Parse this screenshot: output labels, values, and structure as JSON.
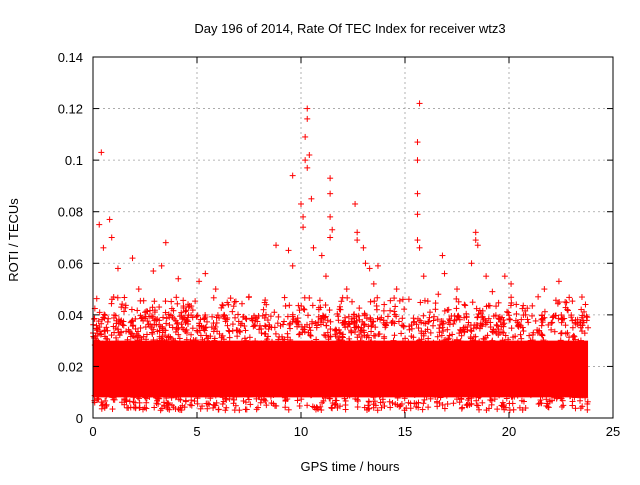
{
  "chart_data": {
    "type": "scatter",
    "title": "Day 196 of 2014, Rate Of TEC Index for receiver wtz3",
    "xlabel": "GPS time / hours",
    "ylabel": "ROTI / TECUs",
    "xlim": [
      0,
      25
    ],
    "ylim": [
      0,
      0.14
    ],
    "x_ticks": [
      "0",
      "5",
      "10",
      "15",
      "20",
      "25"
    ],
    "y_ticks": [
      "0",
      "0.02",
      "0.04",
      "0.06",
      "0.08",
      "0.1",
      "0.12",
      "0.14"
    ],
    "grid": true,
    "marker": "+",
    "color": "#ff0000",
    "data_hours": [
      0,
      23.8
    ],
    "baseline_band": [
      0.008,
      0.03
    ],
    "series": [
      {
        "name": "ROTI",
        "points": [
          [
            0.4,
            0.103
          ],
          [
            0.3,
            0.075
          ],
          [
            0.8,
            0.077
          ],
          [
            0.9,
            0.07
          ],
          [
            0.5,
            0.066
          ],
          [
            1.2,
            0.058
          ],
          [
            1.9,
            0.062
          ],
          [
            2.2,
            0.05
          ],
          [
            2.9,
            0.057
          ],
          [
            3.5,
            0.068
          ],
          [
            3.3,
            0.059
          ],
          [
            4.1,
            0.054
          ],
          [
            5.1,
            0.053
          ],
          [
            5.4,
            0.056
          ],
          [
            5.9,
            0.05
          ],
          [
            6.8,
            0.045
          ],
          [
            7.5,
            0.047
          ],
          [
            8.8,
            0.067
          ],
          [
            9.4,
            0.065
          ],
          [
            9.6,
            0.059
          ],
          [
            9.6,
            0.094
          ],
          [
            10.0,
            0.083
          ],
          [
            10.1,
            0.078
          ],
          [
            10.1,
            0.074
          ],
          [
            10.2,
            0.1
          ],
          [
            10.2,
            0.109
          ],
          [
            10.3,
            0.116
          ],
          [
            10.3,
            0.12
          ],
          [
            10.4,
            0.102
          ],
          [
            10.3,
            0.097
          ],
          [
            10.5,
            0.085
          ],
          [
            10.6,
            0.066
          ],
          [
            11.0,
            0.063
          ],
          [
            11.4,
            0.093
          ],
          [
            11.4,
            0.087
          ],
          [
            11.4,
            0.078
          ],
          [
            11.5,
            0.073
          ],
          [
            11.4,
            0.07
          ],
          [
            11.2,
            0.055
          ],
          [
            12.2,
            0.05
          ],
          [
            12.6,
            0.083
          ],
          [
            12.7,
            0.072
          ],
          [
            12.7,
            0.069
          ],
          [
            13.0,
            0.066
          ],
          [
            13.1,
            0.06
          ],
          [
            13.3,
            0.058
          ],
          [
            13.5,
            0.052
          ],
          [
            13.7,
            0.059
          ],
          [
            14.0,
            0.044
          ],
          [
            14.6,
            0.05
          ],
          [
            15.7,
            0.122
          ],
          [
            15.6,
            0.107
          ],
          [
            15.6,
            0.1
          ],
          [
            15.6,
            0.087
          ],
          [
            15.6,
            0.079
          ],
          [
            15.6,
            0.069
          ],
          [
            15.7,
            0.066
          ],
          [
            15.9,
            0.055
          ],
          [
            16.6,
            0.048
          ],
          [
            16.8,
            0.063
          ],
          [
            16.9,
            0.056
          ],
          [
            17.5,
            0.05
          ],
          [
            18.4,
            0.072
          ],
          [
            18.4,
            0.069
          ],
          [
            18.5,
            0.067
          ],
          [
            18.2,
            0.06
          ],
          [
            18.9,
            0.055
          ],
          [
            19.2,
            0.049
          ],
          [
            19.8,
            0.055
          ],
          [
            20.1,
            0.052
          ],
          [
            21.4,
            0.047
          ],
          [
            21.7,
            0.05
          ],
          [
            22.4,
            0.053
          ],
          [
            22.7,
            0.045
          ],
          [
            23.2,
            0.038
          ],
          [
            23.6,
            0.037
          ],
          [
            23.8,
            0.035
          ],
          [
            0.2,
            0.03
          ],
          [
            2.5,
            0.041
          ],
          [
            4.6,
            0.043
          ],
          [
            6.3,
            0.04
          ],
          [
            8.2,
            0.042
          ],
          [
            11.9,
            0.042
          ],
          [
            14.9,
            0.046
          ],
          [
            17.1,
            0.042
          ],
          [
            20.8,
            0.04
          ],
          [
            22.1,
            0.039
          ]
        ]
      }
    ]
  }
}
